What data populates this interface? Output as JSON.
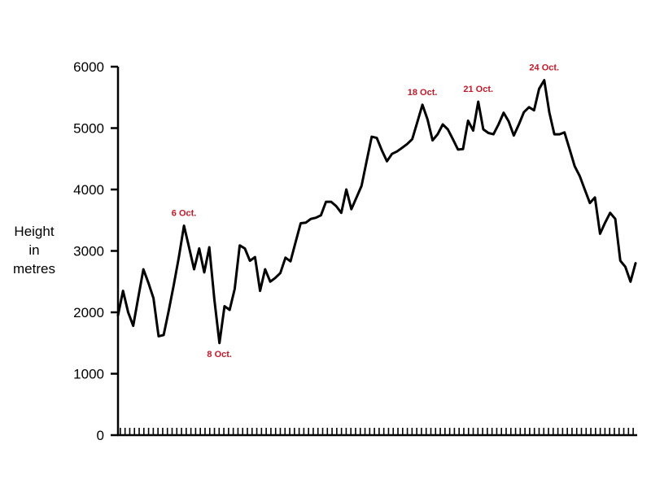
{
  "chart_data": {
    "type": "line",
    "title": "",
    "xlabel": "",
    "ylabel_lines": [
      "Height",
      "in",
      "metres"
    ],
    "ylim": [
      0,
      6000
    ],
    "yticks": [
      0,
      1000,
      2000,
      3000,
      4000,
      5000,
      6000
    ],
    "yticks_labels": [
      "0",
      "1000",
      "2000",
      "3000",
      "4000",
      "5000",
      "6000"
    ],
    "grid": false,
    "x_minor_tick_count": 110,
    "line_color": "#000000",
    "annotation_color": "#c0192a",
    "series": [
      {
        "values": [
          1950,
          2350,
          2000,
          1780,
          2240,
          2700,
          2480,
          2230,
          1610,
          1630,
          2030,
          2450,
          2900,
          3410,
          3060,
          2700,
          3040,
          2650,
          3060,
          2200,
          1500,
          2100,
          2040,
          2380,
          3090,
          3040,
          2840,
          2900,
          2350,
          2700,
          2500,
          2560,
          2640,
          2890,
          2830,
          3140,
          3450,
          3460,
          3520,
          3540,
          3580,
          3800,
          3800,
          3730,
          3620,
          4000,
          3680,
          3870,
          4060,
          4460,
          4860,
          4840,
          4640,
          4460,
          4580,
          4620,
          4680,
          4740,
          4820,
          5100,
          5380,
          5140,
          4800,
          4900,
          5060,
          4980,
          4820,
          4650,
          4660,
          5120,
          4960,
          5430,
          4980,
          4920,
          4900,
          5060,
          5250,
          5110,
          4880,
          5060,
          5260,
          5340,
          5290,
          5640,
          5780,
          5260,
          4900,
          4900,
          4930,
          4660,
          4380,
          4220,
          4000,
          3780,
          3870,
          3280,
          3460,
          3620,
          3520,
          2840,
          2740,
          2500,
          2800
        ]
      }
    ],
    "annotations": [
      {
        "text": "6 Oct.",
        "index": 13,
        "position": "above"
      },
      {
        "text": "8 Oct.",
        "index": 20,
        "position": "below"
      },
      {
        "text": "18 Oct.",
        "index": 60,
        "position": "above"
      },
      {
        "text": "21 Oct.",
        "index": 71,
        "position": "above"
      },
      {
        "text": "24 Oct.",
        "index": 84,
        "position": "above"
      }
    ]
  }
}
